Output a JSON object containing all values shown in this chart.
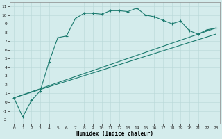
{
  "xlabel": "Humidex (Indice chaleur)",
  "bg_color": "#d4ecec",
  "line_color": "#1a7a6e",
  "grid_color": "#b8d8d8",
  "ylim": [
    -2.5,
    11.5
  ],
  "xlim": [
    -0.5,
    23.5
  ],
  "yticks": [
    -2,
    -1,
    0,
    1,
    2,
    3,
    4,
    5,
    6,
    7,
    8,
    9,
    10,
    11
  ],
  "xticks": [
    0,
    1,
    2,
    3,
    4,
    5,
    6,
    7,
    8,
    9,
    10,
    11,
    12,
    13,
    14,
    15,
    16,
    17,
    18,
    19,
    20,
    21,
    22,
    23
  ],
  "line1_x": [
    0,
    1,
    2,
    3,
    4,
    5,
    6,
    7,
    8,
    9,
    10,
    11,
    12,
    13,
    14,
    15,
    16,
    17,
    18,
    19,
    20,
    21,
    22,
    23
  ],
  "line1_y": [
    0.5,
    -1.7,
    0.2,
    1.3,
    4.6,
    7.4,
    7.6,
    9.6,
    10.2,
    10.2,
    10.1,
    10.5,
    10.5,
    10.4,
    10.8,
    10.0,
    9.8,
    9.4,
    9.0,
    9.3,
    8.2,
    7.8,
    8.3,
    8.5
  ],
  "line2_x": [
    0,
    23
  ],
  "line2_y": [
    0.5,
    8.5
  ],
  "line3_x": [
    0,
    23
  ],
  "line3_y": [
    0.5,
    7.8
  ]
}
